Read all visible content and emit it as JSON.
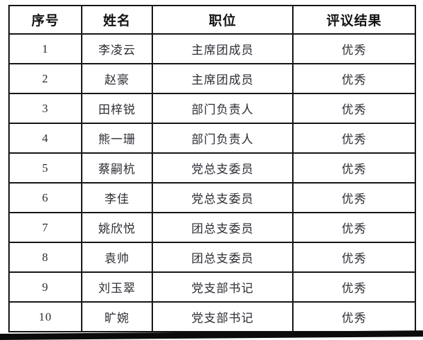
{
  "page": {
    "background": "#ffffff"
  },
  "colors": {
    "border": "#141414",
    "text": "#2c2c34",
    "header_text": "#121212",
    "bottom_rule": "#0b0b0b"
  },
  "table": {
    "headers": [
      "序号",
      "姓名",
      "职位",
      "评议结果"
    ],
    "rows": [
      [
        "1",
        "李凌云",
        "主席团成员",
        "优秀"
      ],
      [
        "2",
        "赵豪",
        "主席团成员",
        "优秀"
      ],
      [
        "3",
        "田梓锐",
        "部门负责人",
        "优秀"
      ],
      [
        "4",
        "熊一珊",
        "部门负责人",
        "优秀"
      ],
      [
        "5",
        "蔡嗣杭",
        "党总支委员",
        "优秀"
      ],
      [
        "6",
        "李佳",
        "党总支委员",
        "优秀"
      ],
      [
        "7",
        "姚欣悦",
        "团总支委员",
        "优秀"
      ],
      [
        "8",
        "袁帅",
        "团总支委员",
        "优秀"
      ],
      [
        "9",
        "刘玉翠",
        "党支部书记",
        "优秀"
      ],
      [
        "10",
        "旷婉",
        "党支部书记",
        "优秀"
      ]
    ]
  }
}
